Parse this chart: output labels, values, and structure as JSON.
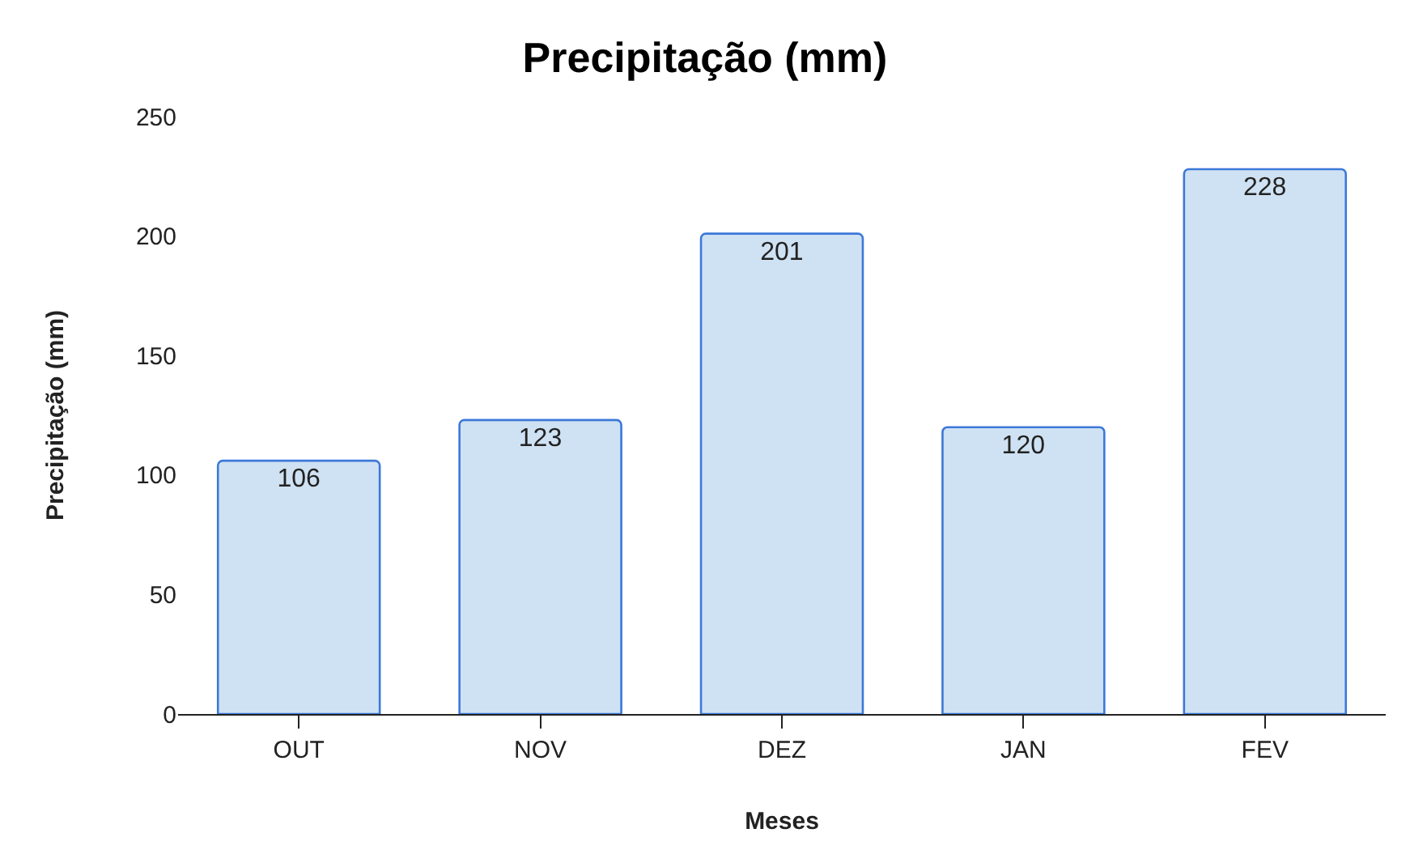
{
  "chart_data": {
    "type": "bar",
    "title": "Precipitação (mm)",
    "xlabel": "Meses",
    "ylabel": "Precipitação (mm)",
    "categories": [
      "OUT",
      "NOV",
      "DEZ",
      "JAN",
      "FEV"
    ],
    "values": [
      106,
      123,
      201,
      120,
      228
    ],
    "color": "#cfe2f3",
    "ylim": [
      0,
      250
    ],
    "yticks": [
      0,
      50,
      100,
      150,
      200,
      250
    ],
    "data_labels": true
  }
}
